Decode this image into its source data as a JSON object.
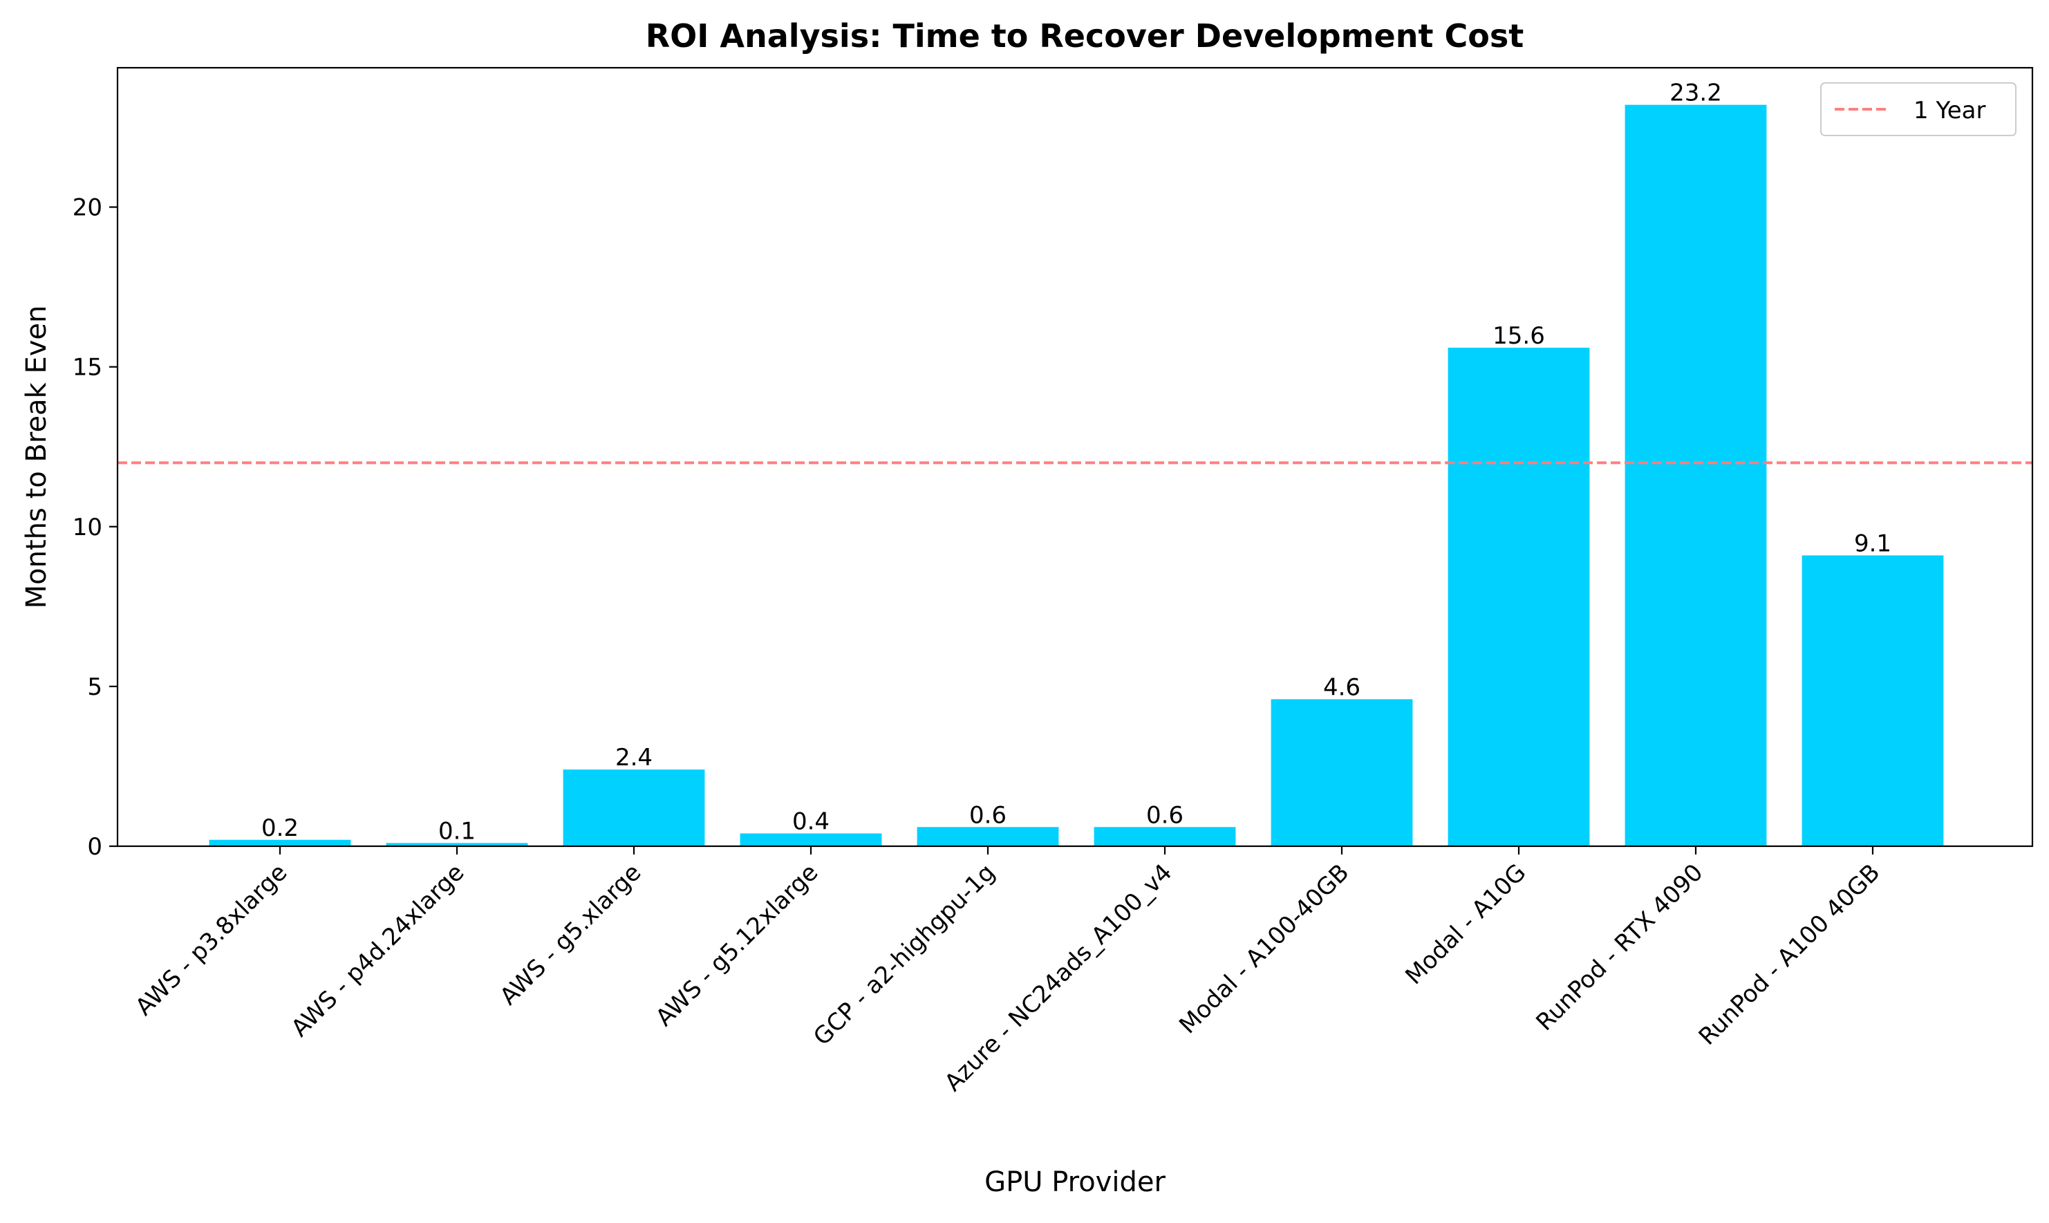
{
  "chart_data": {
    "type": "bar",
    "title": "ROI Analysis: Time to Recover Development Cost",
    "xlabel": "GPU Provider",
    "ylabel": "Months to Break Even",
    "categories": [
      "AWS - p3.8xlarge",
      "AWS - p4d.24xlarge",
      "AWS - g5.xlarge",
      "AWS - g5.12xlarge",
      "GCP - a2-highgpu-1g",
      "Azure - NC24ads_A100_v4",
      "Modal - A100-40GB",
      "Modal - A10G",
      "RunPod - RTX 4090",
      "RunPod - A100 40GB"
    ],
    "values": [
      0.2,
      0.1,
      2.4,
      0.4,
      0.6,
      0.6,
      4.6,
      15.6,
      23.2,
      9.1
    ],
    "data_labels": [
      "0.2",
      "0.1",
      "2.4",
      "0.4",
      "0.6",
      "0.6",
      "4.6",
      "15.6",
      "23.2",
      "9.1"
    ],
    "ylim": [
      0,
      24.36
    ],
    "yticks": [
      0,
      5,
      10,
      15,
      20
    ],
    "grid": false,
    "bar_color": "#00D1FF",
    "reference_line": {
      "value": 12,
      "label": "1 Year",
      "color": "#FF7F7F",
      "style": "dashed"
    },
    "legend": {
      "position": "top-right",
      "entries": [
        "1 Year"
      ]
    }
  }
}
